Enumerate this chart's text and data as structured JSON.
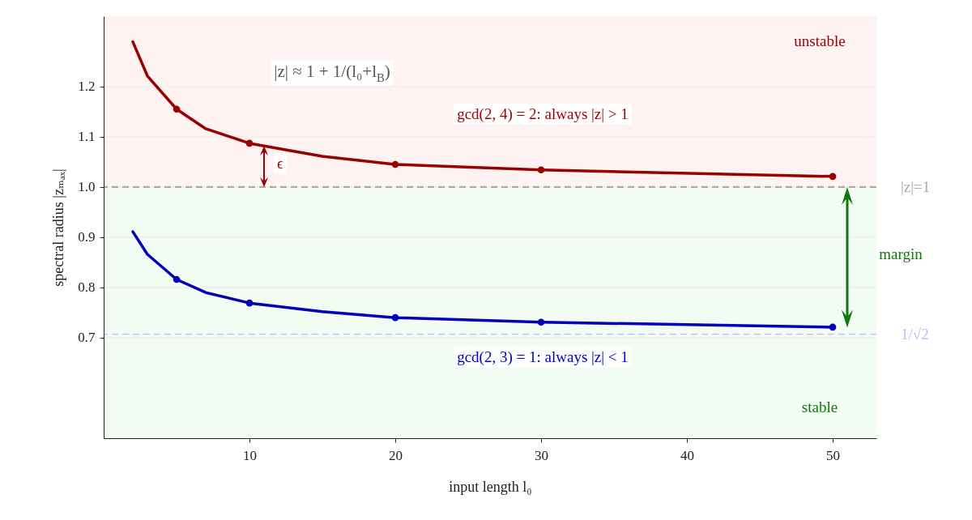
{
  "chart_data": {
    "type": "line",
    "xlabel": "input length l₀",
    "ylabel": "spectral radius |zₘₐₓ|",
    "xlim": [
      0,
      53
    ],
    "xticks": [
      10,
      20,
      30,
      40,
      50
    ],
    "ylim": [
      0.5,
      1.34
    ],
    "yticks": [
      0.7,
      0.8,
      0.9,
      {
        "value": 1,
        "label": "1.0"
      },
      1.1,
      1.2
    ],
    "grid": "y",
    "marker": "none",
    "line_style": "solid",
    "series": [
      {
        "type": "line",
        "color": "#990000",
        "x": [
          2,
          3,
          5,
          7,
          10,
          15,
          20,
          30,
          50
        ],
        "values": [
          1.289,
          1.221,
          1.155,
          1.116,
          1.087,
          1.061,
          1.045,
          1.034,
          1.021
        ]
      },
      {
        "type": "line",
        "color": "#0000bb",
        "x": [
          2,
          3,
          5,
          7,
          10,
          15,
          20,
          30,
          50
        ],
        "values": [
          0.911,
          0.866,
          0.816,
          0.79,
          0.769,
          0.752,
          0.74,
          0.731,
          0.721
        ]
      },
      {
        "type": "scatter",
        "marker": "circle",
        "color": "#990000",
        "x": [
          5,
          10,
          20,
          30,
          50
        ],
        "values": [
          1.155,
          1.087,
          1.045,
          1.034,
          1.021
        ]
      },
      {
        "type": "scatter",
        "marker": "circle",
        "color": "#0000bb",
        "x": [
          5,
          10,
          20,
          30,
          50
        ],
        "values": [
          0.816,
          0.769,
          0.74,
          0.731,
          0.721
        ]
      }
    ],
    "ref_lines": [
      {
        "axis": "y",
        "value": 1.0,
        "label": "|z|=1",
        "color": "#aaaaaa",
        "line_style": "dashed"
      },
      {
        "axis": "y",
        "value": 0.7071,
        "label": "1/√2",
        "color": "#bbbbff",
        "line_style": "dashed"
      }
    ],
    "bands": [
      {
        "axis": "y",
        "from": 1.0,
        "to": 1.34,
        "label": "unstable",
        "color": "#fff2f2"
      },
      {
        "axis": "y",
        "from": 0.5,
        "to": 1.0,
        "label": "stable",
        "color": "#f3fcf3"
      }
    ],
    "annotations": [
      "|z| ≈ 1 + 1/(l₀+l$_{B}$)",
      "gcd(2, 4) = 2:  always |z| > 1",
      "gcd(2, 3) = 1:  always |z| < 1",
      {
        "text": "ϵ",
        "x": 12.1,
        "y": 1.047
      },
      "margin"
    ]
  }
}
